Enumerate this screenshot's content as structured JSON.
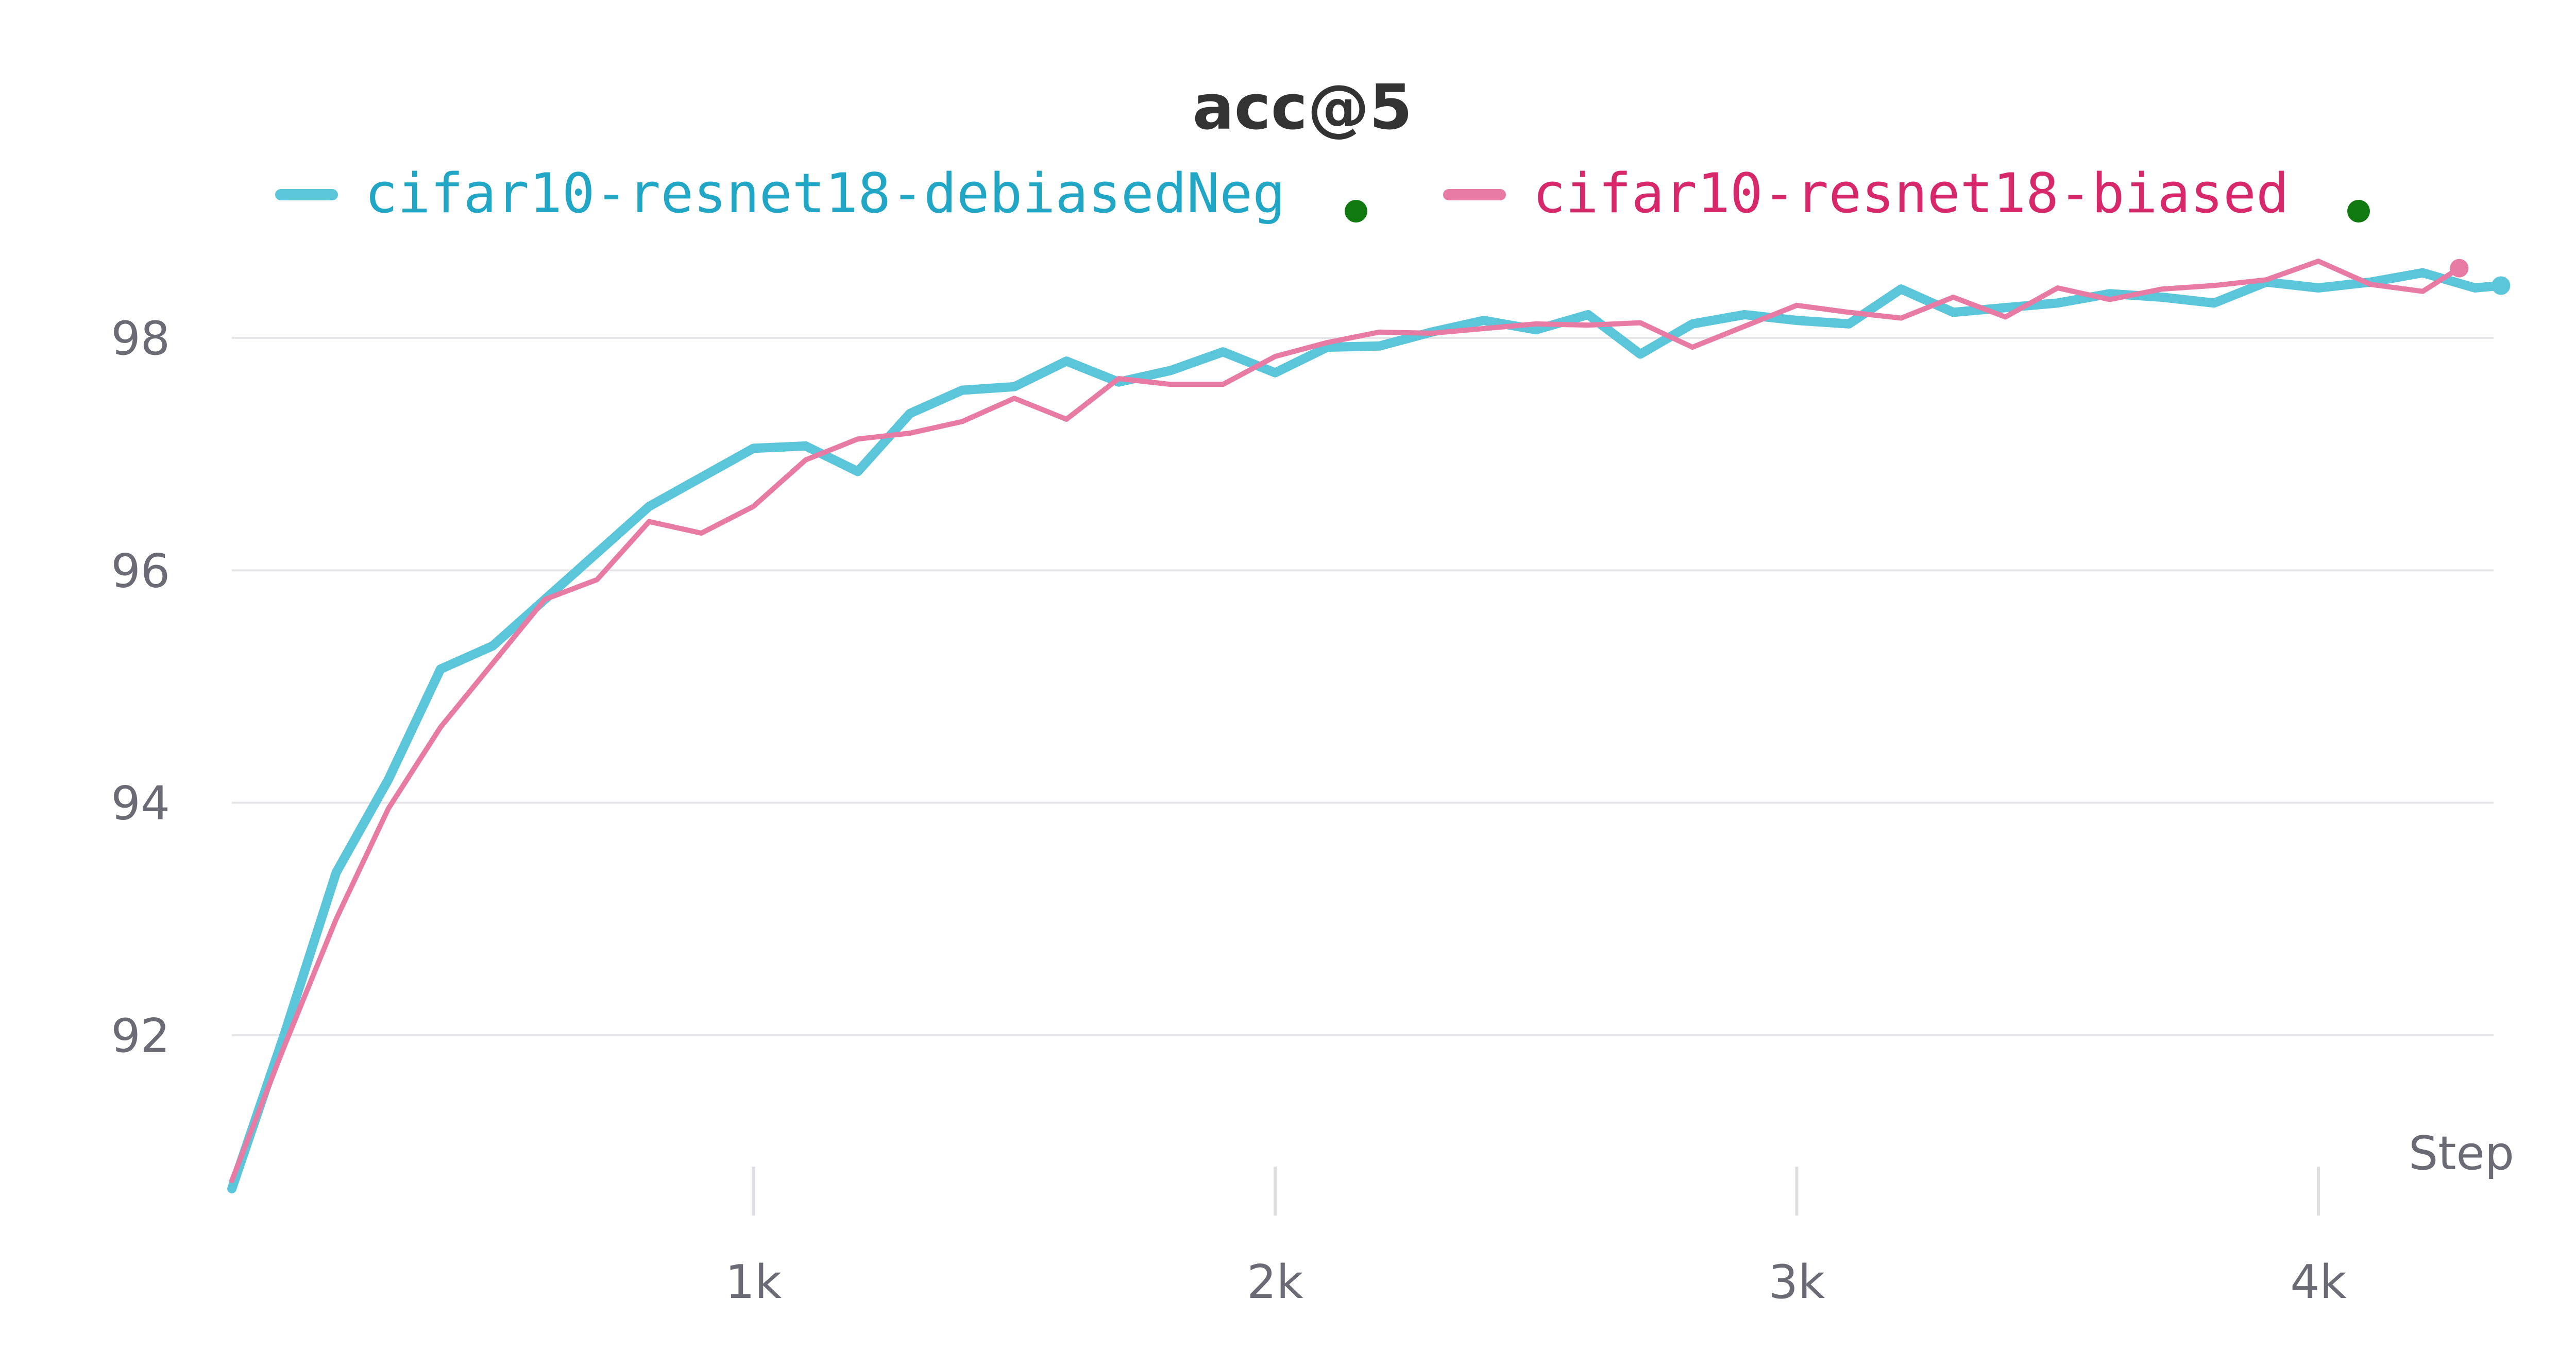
{
  "chart_data": {
    "type": "line",
    "title": "acc@5",
    "xlabel": "Step",
    "ylabel": "",
    "xlim": [
      0,
      4350
    ],
    "ylim": [
      90.8,
      99.0
    ],
    "x_ticks": [
      1000,
      2000,
      3000,
      4000
    ],
    "x_tick_labels": [
      "1k",
      "2k",
      "3k",
      "4k"
    ],
    "y_ticks": [
      92,
      94,
      96,
      98
    ],
    "y_tick_labels": [
      "92",
      "94",
      "96",
      "98"
    ],
    "grid": true,
    "legend_position": "top-center",
    "series": [
      {
        "name": "cifar10-resnet18-debiasedNeg",
        "color": "#5bc5da",
        "marker_color": "#107a10",
        "x": [
          0,
          100,
          200,
          300,
          400,
          500,
          600,
          700,
          800,
          900,
          1000,
          1100,
          1200,
          1300,
          1400,
          1500,
          1600,
          1700,
          1800,
          1900,
          2000,
          2100,
          2200,
          2300,
          2400,
          2500,
          2600,
          2700,
          2800,
          2900,
          3000,
          3100,
          3200,
          3300,
          3400,
          3500,
          3600,
          3700,
          3800,
          3900,
          4000,
          4100,
          4200,
          4300,
          4350
        ],
        "y": [
          90.68,
          92.0,
          93.4,
          94.2,
          95.15,
          95.35,
          95.75,
          96.15,
          96.55,
          96.8,
          97.05,
          97.07,
          96.85,
          97.35,
          97.55,
          97.58,
          97.8,
          97.62,
          97.72,
          97.88,
          97.7,
          97.92,
          97.93,
          98.05,
          98.15,
          98.07,
          98.2,
          97.86,
          98.12,
          98.2,
          98.15,
          98.12,
          98.42,
          98.22,
          98.26,
          98.3,
          98.38,
          98.35,
          98.3,
          98.48,
          98.43,
          98.48,
          98.56,
          98.43,
          98.45
        ]
      },
      {
        "name": "cifar10-resnet18-biased",
        "color": "#e87ba4",
        "marker_color": "#107a10",
        "x": [
          0,
          100,
          200,
          300,
          400,
          500,
          600,
          700,
          800,
          900,
          1000,
          1100,
          1200,
          1300,
          1400,
          1500,
          1600,
          1700,
          1800,
          1900,
          2000,
          2100,
          2200,
          2300,
          2400,
          2500,
          2600,
          2700,
          2800,
          2900,
          3000,
          3100,
          3200,
          3300,
          3400,
          3500,
          3600,
          3700,
          3800,
          3900,
          4000,
          4100,
          4200,
          4270
        ],
        "y": [
          90.75,
          91.9,
          93.0,
          93.95,
          94.65,
          95.2,
          95.75,
          95.92,
          96.42,
          96.32,
          96.55,
          96.95,
          97.13,
          97.18,
          97.28,
          97.48,
          97.3,
          97.65,
          97.6,
          97.6,
          97.84,
          97.96,
          98.05,
          98.04,
          98.08,
          98.12,
          98.11,
          98.13,
          97.92,
          98.1,
          98.28,
          98.22,
          98.17,
          98.35,
          98.18,
          98.43,
          98.33,
          98.42,
          98.45,
          98.5,
          98.66,
          98.46,
          98.4,
          98.6
        ]
      }
    ]
  }
}
